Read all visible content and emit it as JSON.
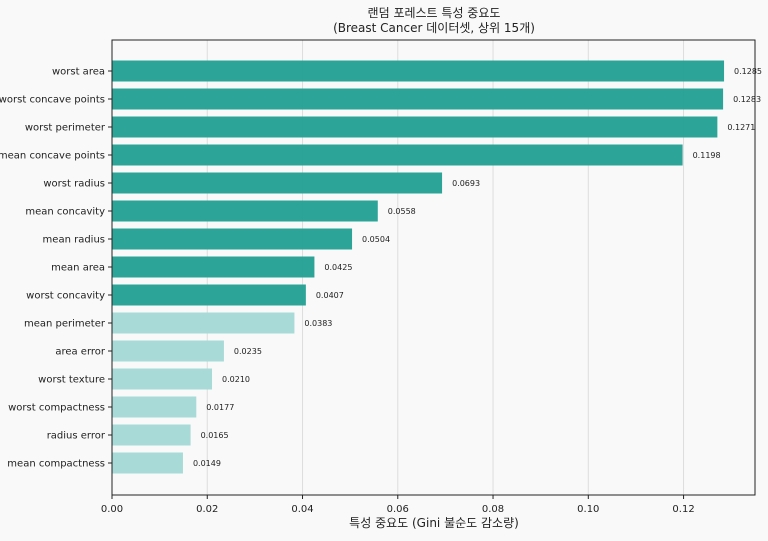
{
  "chart_data": {
    "type": "bar",
    "orientation": "horizontal",
    "title": "랜덤 포레스트 특성 중요도",
    "subtitle": "(Breast Cancer 데이터셋, 상위 15개)",
    "xlabel": "특성 중요도 (Gini 불순도 감소량)",
    "ylabel": "",
    "xlim": [
      0,
      0.135
    ],
    "xticks": [
      "0.00",
      "0.02",
      "0.04",
      "0.06",
      "0.08",
      "0.10",
      "0.12"
    ],
    "grid": "vertical",
    "categories": [
      "worst area",
      "worst concave points",
      "worst perimeter",
      "mean concave points",
      "worst radius",
      "mean concavity",
      "mean radius",
      "mean area",
      "worst concavity",
      "mean perimeter",
      "area error",
      "worst texture",
      "worst compactness",
      "radius error",
      "mean compactness"
    ],
    "values": [
      0.1285,
      0.1283,
      0.1271,
      0.1198,
      0.0693,
      0.0558,
      0.0504,
      0.0425,
      0.0407,
      0.0383,
      0.0235,
      0.021,
      0.0177,
      0.0165,
      0.0149
    ],
    "labels": [
      "0.1285",
      "0.1283",
      "0.1271",
      "0.1198",
      "0.0693",
      "0.0558",
      "0.0504",
      "0.0425",
      "0.0407",
      "0.0383",
      "0.0235",
      "0.0210",
      "0.0177",
      "0.0165",
      "0.0149"
    ],
    "highlight_top_n": 9,
    "colors": {
      "highlight": "#26a195",
      "normal": "#a5dad6",
      "grid": "#dddddd",
      "background": "#f9f9f9"
    }
  }
}
